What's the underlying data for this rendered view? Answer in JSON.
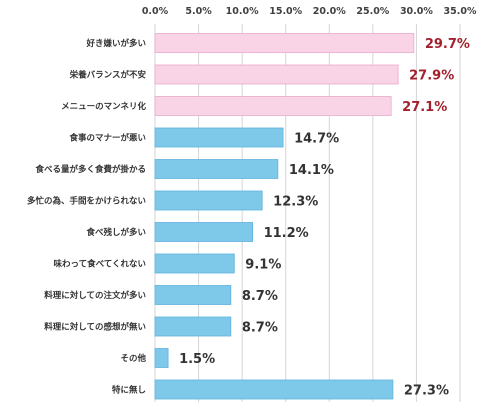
{
  "chart_data": {
    "type": "bar",
    "orientation": "horizontal",
    "title": "",
    "xlabel": "",
    "ylabel": "",
    "xlim": [
      0,
      35
    ],
    "x_ticks": [
      0,
      5,
      10,
      15,
      20,
      25,
      30,
      35
    ],
    "x_tick_labels": [
      "0.0%",
      "5.0%",
      "10.0%",
      "15.0%",
      "20.0%",
      "25.0%",
      "30.0%",
      "35.0%"
    ],
    "grid": "vertical",
    "legend": "none",
    "categories": [
      "好き嫌いが多い",
      "栄養バランスが不安",
      "メニューのマンネリ化",
      "食事のマナーが悪い",
      "食べる量が多く食費が掛かる",
      "多忙の為、手間をかけられない",
      "食べ残しが多い",
      "味わって食べてくれない",
      "料理に対しての注文が多い",
      "料理に対しての感想が無い",
      "その他",
      "特に無し"
    ],
    "values": [
      29.7,
      27.9,
      27.1,
      14.7,
      14.1,
      12.3,
      11.2,
      9.1,
      8.7,
      8.7,
      1.5,
      27.3
    ],
    "value_labels": [
      "29.7%",
      "27.9%",
      "27.1%",
      "14.7%",
      "14.1%",
      "12.3%",
      "11.2%",
      "9.1%",
      "8.7%",
      "8.7%",
      "1.5%",
      "27.3%"
    ],
    "highlighted_indices": [
      0,
      1,
      2
    ],
    "colors": {
      "highlight_bar": "#f9d4e6",
      "highlight_border": "#e9aacb",
      "normal_bar": "#7ec8ea",
      "normal_border": "#5fb3dc",
      "highlight_label": "#a3202d",
      "normal_label": "#333333",
      "grid": "#d6d6d6"
    }
  }
}
